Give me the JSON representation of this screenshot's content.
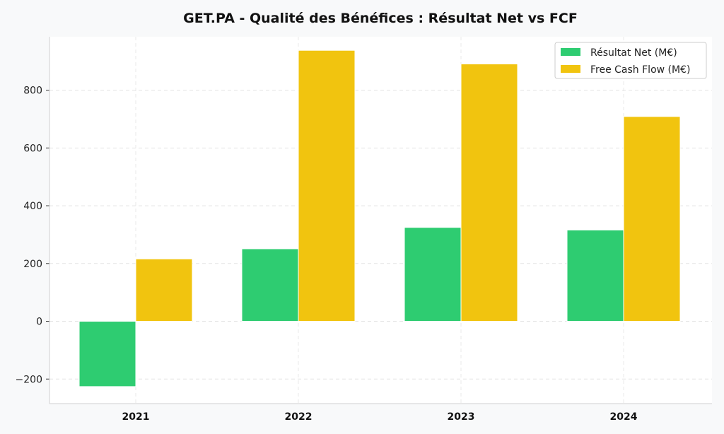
{
  "chart_data": {
    "type": "bar",
    "title": "GET.PA - Qualité des Bénéfices : Résultat Net vs FCF",
    "xlabel": "",
    "ylabel": "",
    "categories": [
      "2021",
      "2022",
      "2023",
      "2024"
    ],
    "series": [
      {
        "name": "Résultat Net (M€)",
        "color": "#2ecc71",
        "values": [
          -226,
          251,
          325,
          316
        ]
      },
      {
        "name": "Free Cash Flow (M€)",
        "color": "#f1c40f",
        "values": [
          216,
          938,
          891,
          709
        ]
      }
    ],
    "ylim": [
      -285,
      985
    ],
    "yticks": [
      -200,
      0,
      200,
      400,
      600,
      800
    ],
    "ytick_labels": [
      "−200",
      "0",
      "200",
      "400",
      "600",
      "800"
    ],
    "grid": true,
    "legend_position": "top-right"
  }
}
